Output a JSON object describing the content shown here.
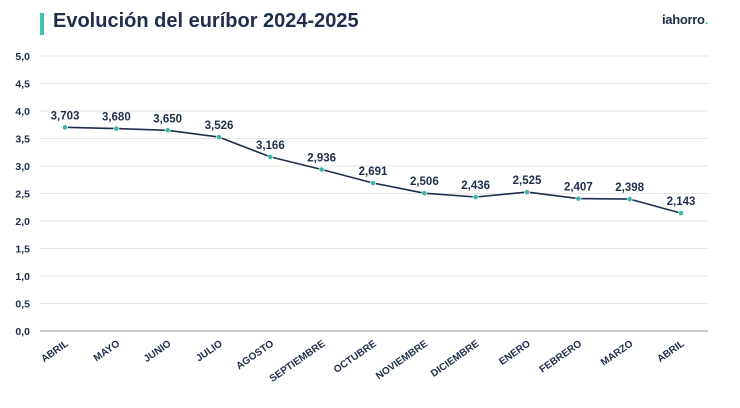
{
  "header": {
    "title": "Evolución del euríbor 2024-2025",
    "logo_text": "iahorro",
    "logo_dot": "."
  },
  "colors": {
    "accent": "#3fc1b0",
    "text": "#1f2e4b",
    "line": "#1f2e4b",
    "marker": "#3fb5a5",
    "grid": "#e6e6e6"
  },
  "chart_data": {
    "type": "line",
    "title": "Evolución del euríbor 2024-2025",
    "xlabel": "",
    "ylabel": "",
    "categories": [
      "ABRIL",
      "MAYO",
      "JUNIO",
      "JULIO",
      "AGOSTO",
      "SEPTIEMBRE",
      "OCTUBRE",
      "NOVIEMBRE",
      "DICIEMBRE",
      "ENERO",
      "FEBRERO",
      "MARZO",
      "ABRIL"
    ],
    "values": [
      3.703,
      3.68,
      3.65,
      3.526,
      3.166,
      2.936,
      2.691,
      2.506,
      2.436,
      2.525,
      2.407,
      2.398,
      2.143
    ],
    "data_labels": [
      "3,703",
      "3,680",
      "3,650",
      "3,526",
      "3,166",
      "2,936",
      "2,691",
      "2,506",
      "2,436",
      "2,525",
      "2,407",
      "2,398",
      "2,143"
    ],
    "ylim": [
      0,
      5
    ],
    "yticks": [
      0,
      0.5,
      1,
      1.5,
      2,
      2.5,
      3,
      3.5,
      4,
      4.5,
      5
    ],
    "ytick_labels": [
      "0,0",
      "0,5",
      "1,0",
      "1,5",
      "2,0",
      "2,5",
      "3,0",
      "3,5",
      "4,0",
      "4,5",
      "5,0"
    ],
    "grid": true,
    "legend": "none"
  }
}
